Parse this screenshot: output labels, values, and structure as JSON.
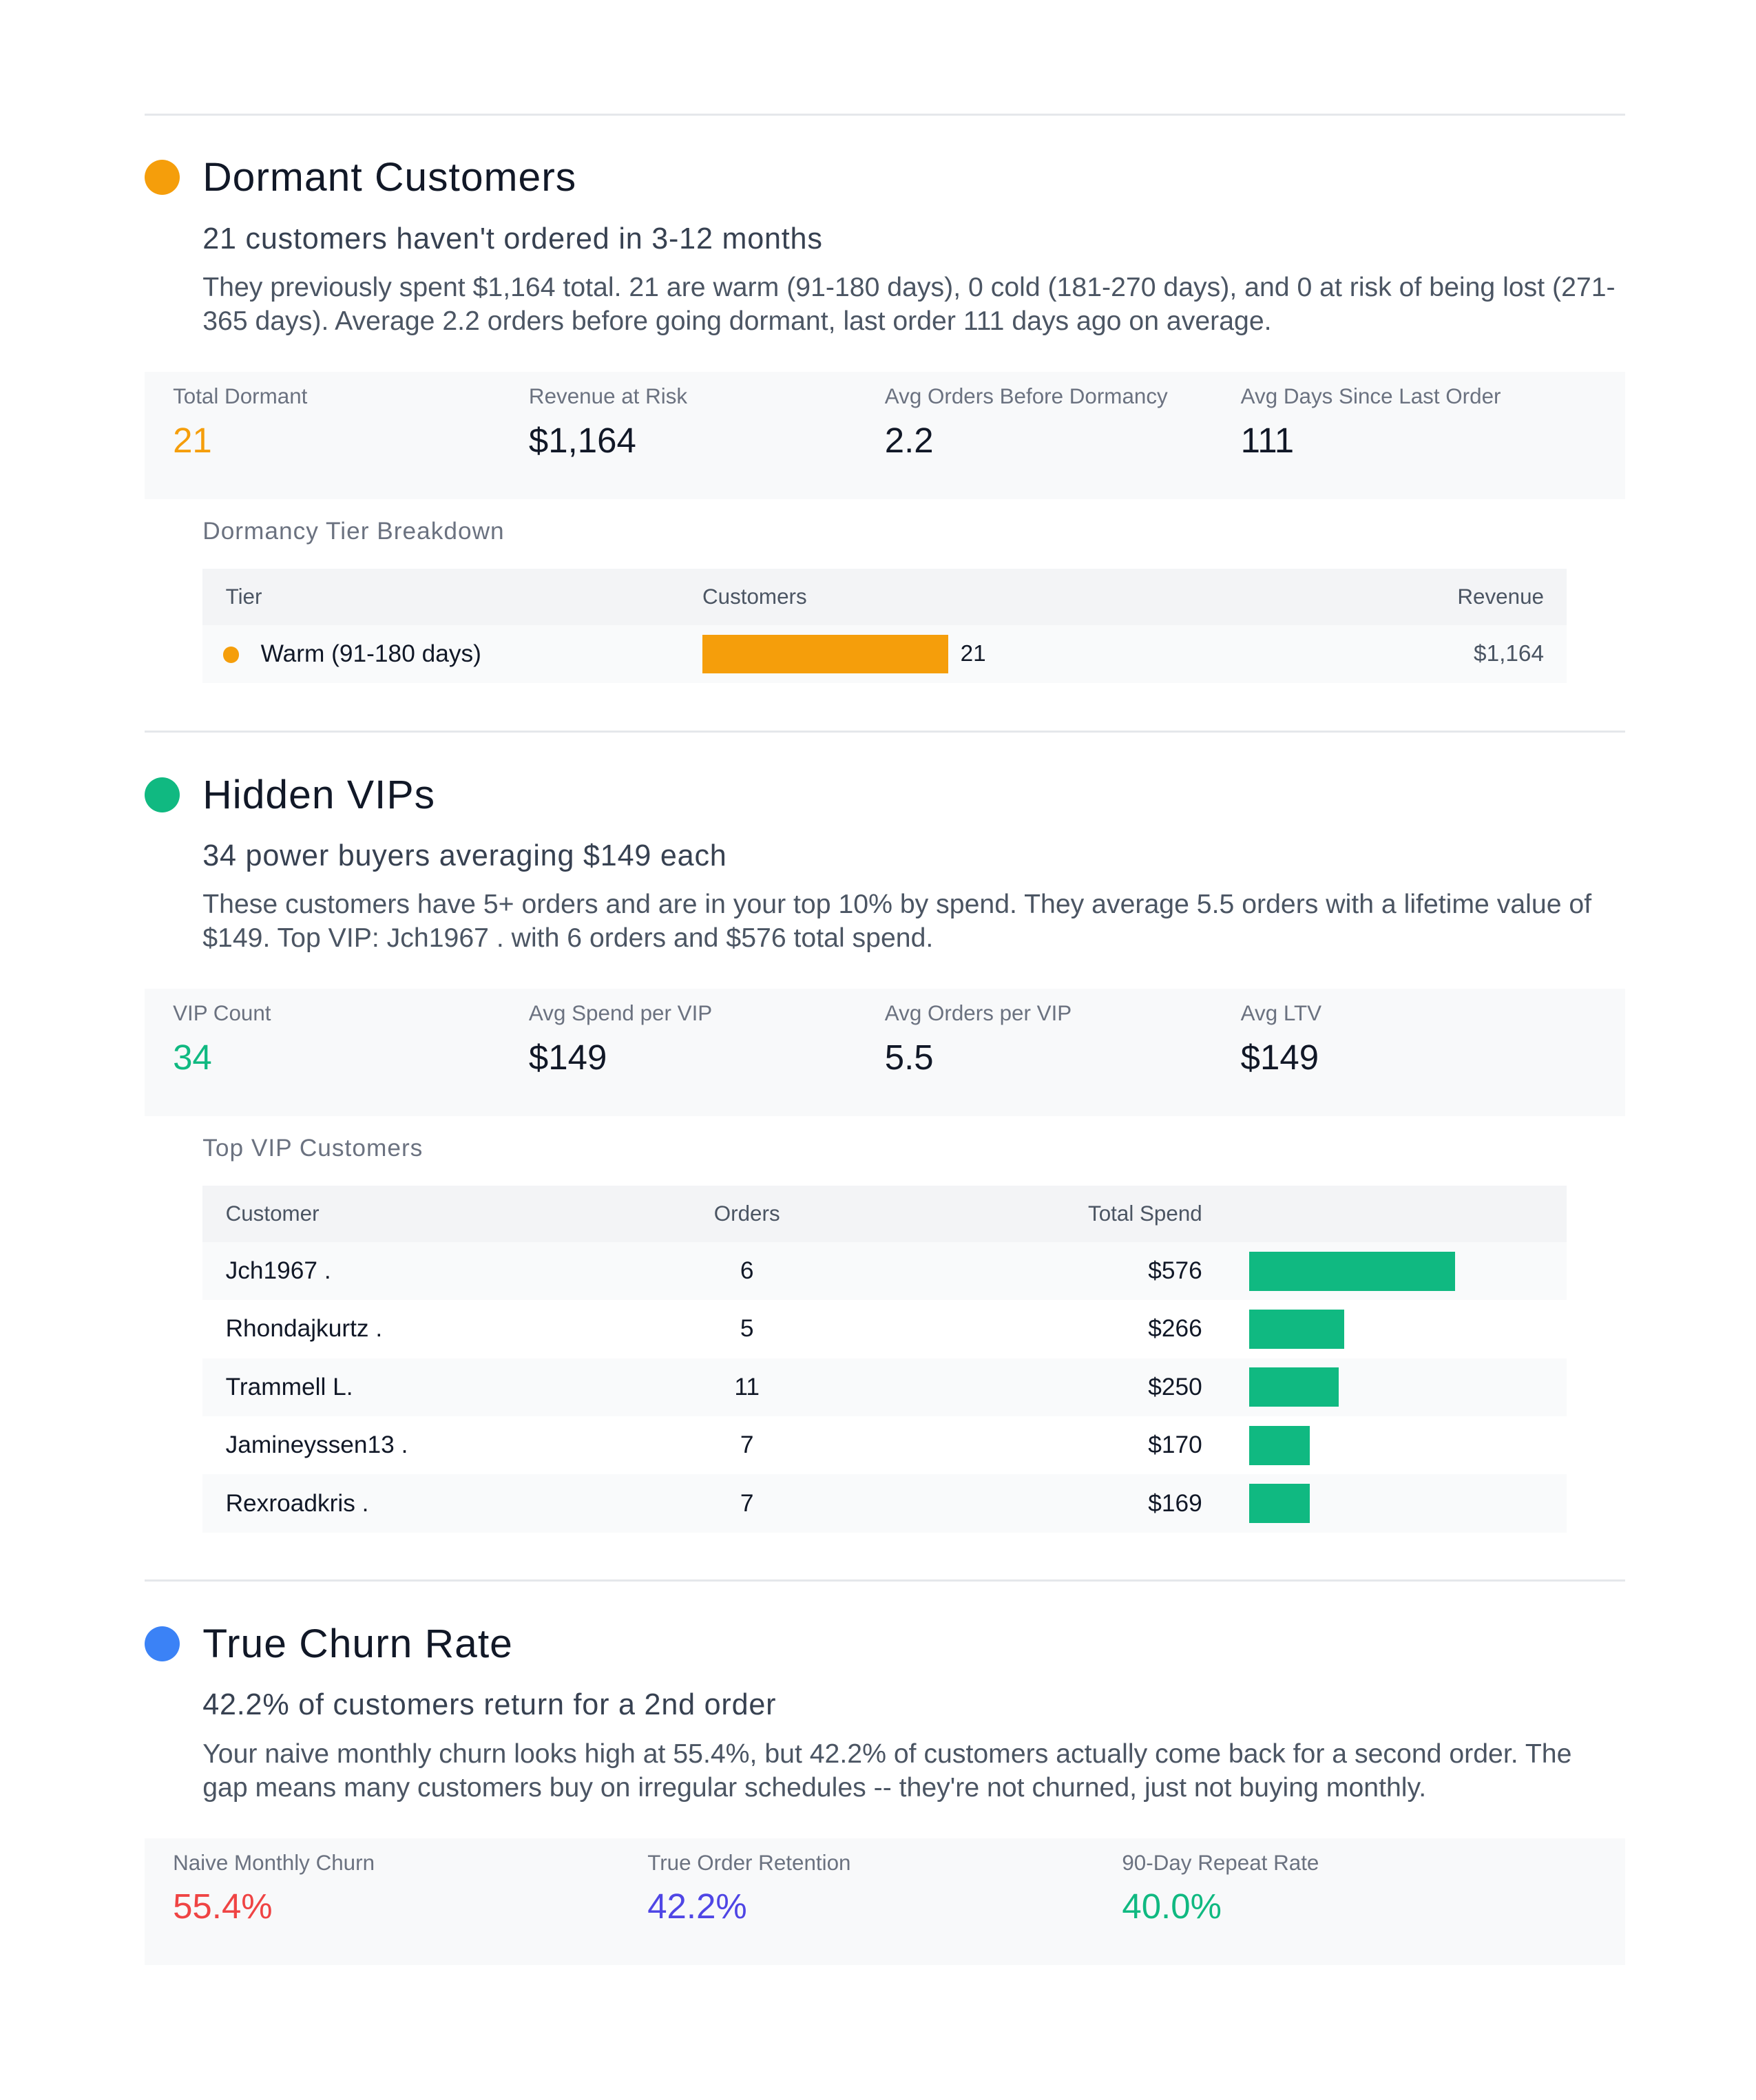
{
  "sections": [
    {
      "color": "#f59e0b",
      "title": "Dormant Customers",
      "subtitle": "21 customers haven't ordered in 3-12 months",
      "description": "They previously spent $1,164 total. 21 are warm (91-180 days), 0 cold (181-270 days), and 0 at risk of being lost (271-365 days). Average 2.2 orders before going dormant, last order 111 days ago on average.",
      "metrics": [
        {
          "label": "Total Dormant",
          "value": "21",
          "color": "#f59e0b"
        },
        {
          "label": "Revenue at Risk",
          "value": "$1,164",
          "color": "#111827"
        },
        {
          "label": "Avg Orders Before Dormancy",
          "value": "2.2",
          "color": "#111827"
        },
        {
          "label": "Avg Days Since Last Order",
          "value": "111",
          "color": "#111827"
        }
      ],
      "table": {
        "caption": "Dormancy Tier Breakdown",
        "kind": "tier",
        "bar_color": "#f59e0b",
        "headers": [
          "Tier",
          "Customers",
          "Revenue"
        ],
        "rows": [
          {
            "tier": "Warm (91-180 days)",
            "customers": 21,
            "revenue": "$1,164"
          }
        ]
      }
    },
    {
      "color": "#10b981",
      "title": "Hidden VIPs",
      "subtitle": "34 power buyers averaging $149 each",
      "description": "These customers have 5+ orders and are in your top 10% by spend. They average 5.5 orders with a lifetime value of $149. Top VIP: Jch1967 . with 6 orders and $576 total spend.",
      "metrics": [
        {
          "label": "VIP Count",
          "value": "34",
          "color": "#10b981"
        },
        {
          "label": "Avg Spend per VIP",
          "value": "$149",
          "color": "#111827"
        },
        {
          "label": "Avg Orders per VIP",
          "value": "5.5",
          "color": "#111827"
        },
        {
          "label": "Avg LTV",
          "value": "$149",
          "color": "#111827"
        }
      ],
      "table": {
        "caption": "Top VIP Customers",
        "kind": "vip",
        "bar_color": "#10b981",
        "headers": [
          "Customer",
          "Orders",
          "Total Spend"
        ],
        "rows": [
          {
            "customer": "Jch1967 .",
            "orders": 6,
            "spend": {
              "value": 576,
              "label": "$576"
            }
          },
          {
            "customer": "Rhondajkurtz .",
            "orders": 5,
            "spend": {
              "value": 266,
              "label": "$266"
            }
          },
          {
            "customer": "Trammell L.",
            "orders": 11,
            "spend": {
              "value": 250,
              "label": "$250"
            }
          },
          {
            "customer": "Jamineyssen13 .",
            "orders": 7,
            "spend": {
              "value": 170,
              "label": "$170"
            }
          },
          {
            "customer": "Rexroadkris .",
            "orders": 7,
            "spend": {
              "value": 169,
              "label": "$169"
            }
          }
        ]
      }
    },
    {
      "color": "#3b82f6",
      "title": "True Churn Rate",
      "subtitle": "42.2% of customers return for a 2nd order",
      "description": "Your naive monthly churn looks high at 55.4%, but 42.2% of customers actually come back for a second order. The gap means many customers buy on irregular schedules -- they're not churned, just not buying monthly.",
      "metrics": [
        {
          "label": "Naive Monthly Churn",
          "value": "55.4%",
          "color": "#ef4444"
        },
        {
          "label": "True Order Retention",
          "value": "42.2%",
          "color": "#4f46e5"
        },
        {
          "label": "90-Day Repeat Rate",
          "value": "40.0%",
          "color": "#10b981"
        }
      ]
    }
  ]
}
